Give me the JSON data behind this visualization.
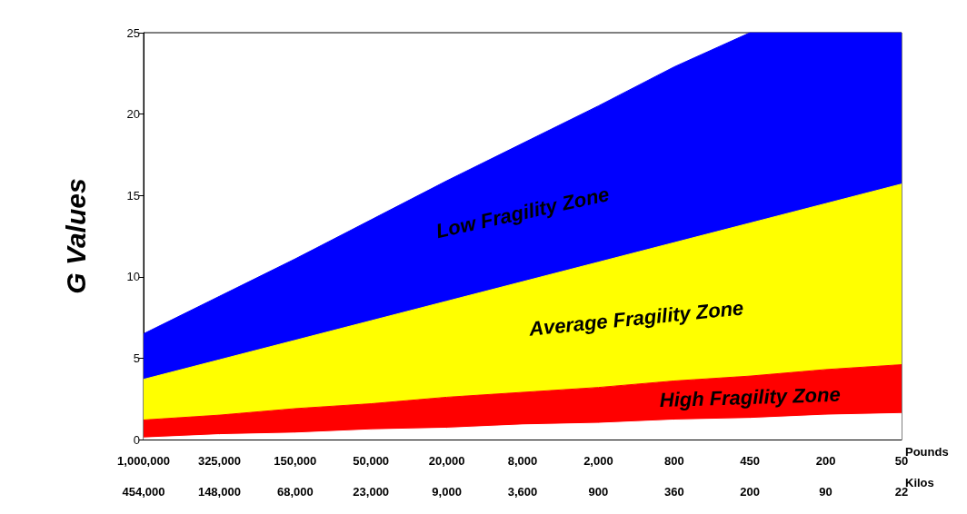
{
  "chart_data": {
    "type": "area",
    "stacked": true,
    "ylabel": "G Values",
    "xlabel": "Pounds\nKilos",
    "categories": [
      "1,000,000\n454,000",
      "325,000\n148,000",
      "150,000\n68,000",
      "50,000\n23,000",
      "20,000\n9,000",
      "8,000\n3,600",
      "2,000\n900",
      "800\n360",
      "450\n200",
      "200\n90",
      "50\n22"
    ],
    "series": [
      {
        "color": "#ffffff",
        "values": [
          0.1,
          0.3,
          0.4,
          0.6,
          0.7,
          0.9,
          1.0,
          1.2,
          1.3,
          1.5,
          1.6
        ]
      },
      {
        "name": "High Fragility Zone",
        "color": "#ff0000",
        "values": [
          1.1,
          1.2,
          1.5,
          1.6,
          1.9,
          2.0,
          2.2,
          2.4,
          2.6,
          2.8,
          3.0
        ]
      },
      {
        "name": "Average Fragility Zone",
        "color": "#ffff00",
        "values": [
          2.5,
          3.4,
          4.2,
          5.1,
          5.9,
          6.8,
          7.7,
          8.5,
          9.4,
          10.2,
          11.1
        ]
      },
      {
        "name": "Low Fragility Zone",
        "color": "#0000ff",
        "values": [
          2.8,
          3.9,
          5.0,
          6.2,
          7.4,
          8.5,
          9.6,
          10.8,
          11.7,
          10.5,
          9.3
        ]
      }
    ],
    "ylim": [
      0,
      25
    ],
    "yticks": [
      0,
      5,
      10,
      15,
      20,
      25
    ],
    "grid": false,
    "legend": false
  }
}
